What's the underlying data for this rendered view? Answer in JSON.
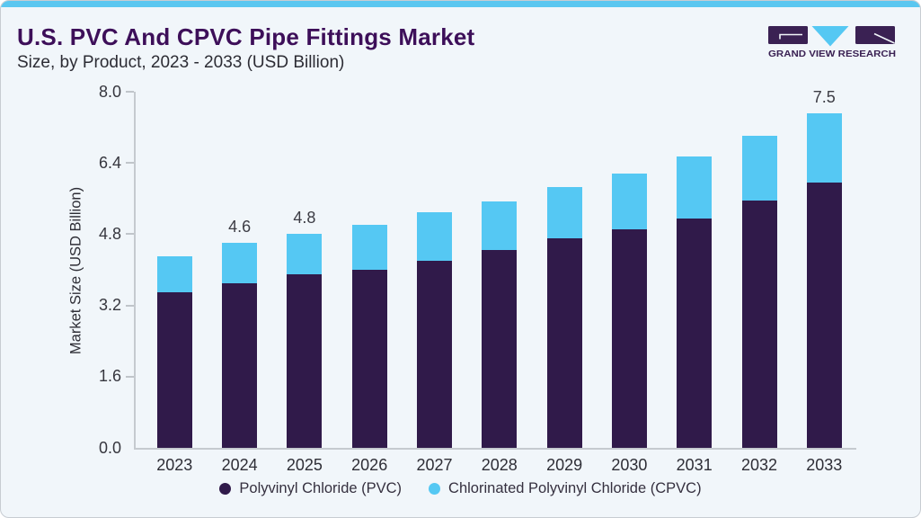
{
  "header": {
    "title": "U.S. PVC And CPVC Pipe Fittings Market",
    "subtitle": "Size, by Product, 2023 - 2033 (USD Billion)"
  },
  "logo": {
    "text": "GRAND VIEW RESEARCH"
  },
  "colors": {
    "accent_strip": "#5bc7f0",
    "title_text": "#3d0f59",
    "pvc": "#301a4a",
    "cpvc": "#55c8f3",
    "axis": "#c5cacf"
  },
  "chart_data": {
    "type": "bar",
    "stacked": true,
    "title": "U.S. PVC And CPVC Pipe Fittings Market Size, by Product, 2023 - 2033 (USD Billion)",
    "categories": [
      "2023",
      "2024",
      "2025",
      "2026",
      "2027",
      "2028",
      "2029",
      "2030",
      "2031",
      "2032",
      "2033"
    ],
    "series": [
      {
        "name": "Polyvinyl Chloride (PVC)",
        "color": "#301a4a",
        "values": [
          3.5,
          3.7,
          3.9,
          4.0,
          4.2,
          4.45,
          4.7,
          4.9,
          5.15,
          5.55,
          5.95
        ]
      },
      {
        "name": "Chlorinated Polyvinyl Chloride (CPVC)",
        "color": "#55c8f3",
        "values": [
          0.8,
          0.9,
          0.9,
          1.0,
          1.1,
          1.1,
          1.15,
          1.25,
          1.4,
          1.45,
          1.55
        ]
      }
    ],
    "totals": [
      4.3,
      4.6,
      4.8,
      5.0,
      5.3,
      5.55,
      5.85,
      6.15,
      6.55,
      7.0,
      7.5
    ],
    "bar_value_labels": [
      "",
      "4.6",
      "4.8",
      "",
      "",
      "",
      "",
      "",
      "",
      "",
      "7.5"
    ],
    "ylabel": "Market Size (USD Billion)",
    "xlabel": "",
    "yticks": [
      "0.0",
      "1.6",
      "3.2",
      "4.8",
      "6.4",
      "8.0"
    ],
    "ylim": [
      0,
      8
    ],
    "grid": false,
    "legend_position": "bottom"
  }
}
